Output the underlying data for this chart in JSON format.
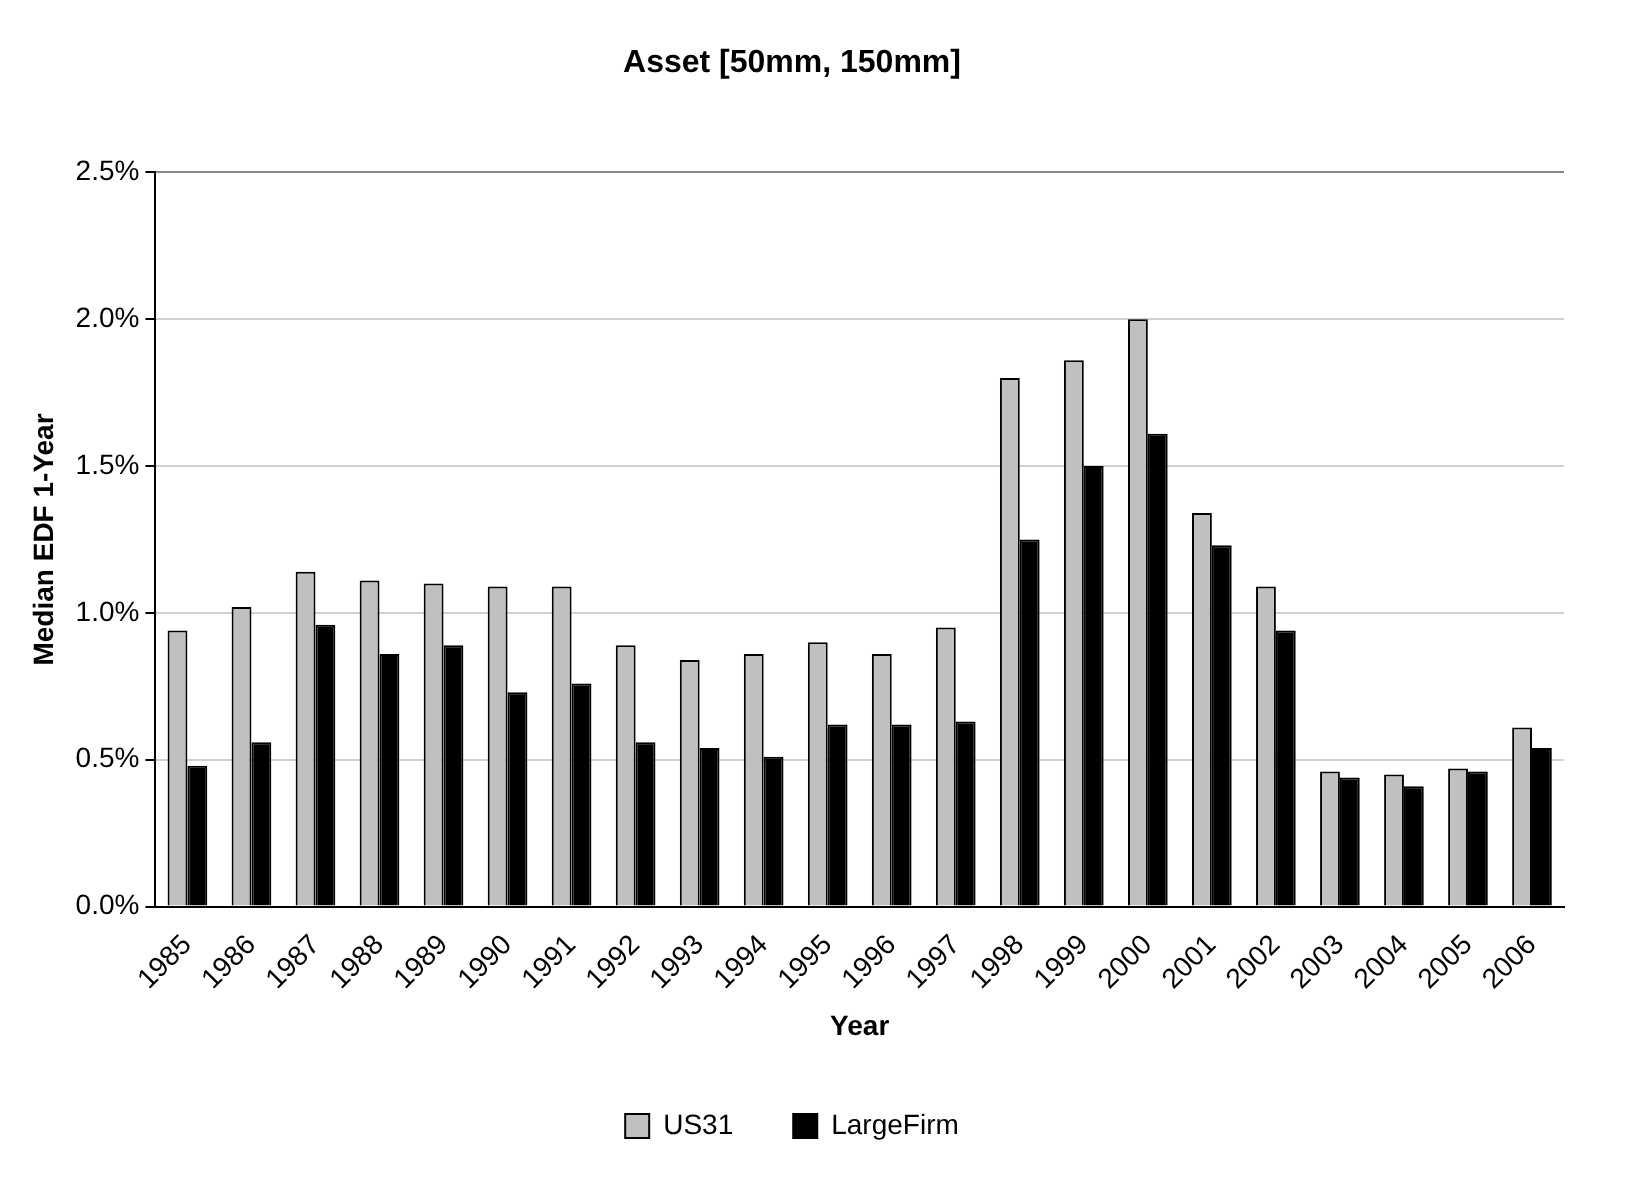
{
  "chart_data": {
    "type": "bar",
    "title": "Asset [50mm, 150mm]",
    "xlabel": "Year",
    "ylabel": "Median EDF 1-Year",
    "categories": [
      "1985",
      "1986",
      "1987",
      "1988",
      "1989",
      "1990",
      "1991",
      "1992",
      "1993",
      "1994",
      "1995",
      "1996",
      "1997",
      "1998",
      "1999",
      "2000",
      "2001",
      "2002",
      "2003",
      "2004",
      "2005",
      "2006"
    ],
    "series": [
      {
        "name": "US31",
        "color": "#c0c0c0",
        "values": [
          0.94,
          1.02,
          1.14,
          1.11,
          1.1,
          1.09,
          1.09,
          0.89,
          0.84,
          0.86,
          0.9,
          0.86,
          0.95,
          1.8,
          1.86,
          2.0,
          1.34,
          1.09,
          0.46,
          0.45,
          0.47,
          0.61
        ]
      },
      {
        "name": "LargeFirm",
        "color": "#000000",
        "values": [
          0.48,
          0.56,
          0.96,
          0.86,
          0.89,
          0.73,
          0.76,
          0.56,
          0.54,
          0.51,
          0.62,
          0.62,
          0.63,
          1.25,
          1.5,
          1.61,
          1.23,
          0.94,
          0.44,
          0.41,
          0.46,
          0.54
        ]
      }
    ],
    "ylim": [
      0,
      2.5
    ],
    "yticks": [
      {
        "value": 0,
        "label": "0.0%"
      },
      {
        "value": 0.5,
        "label": "0.5%"
      },
      {
        "value": 1,
        "label": "1.0%"
      },
      {
        "value": 1.5,
        "label": "1.5%"
      },
      {
        "value": 2,
        "label": "2.0%"
      },
      {
        "value": 2.5,
        "label": "2.5%"
      }
    ],
    "grid": "y",
    "legend": "bottom"
  }
}
